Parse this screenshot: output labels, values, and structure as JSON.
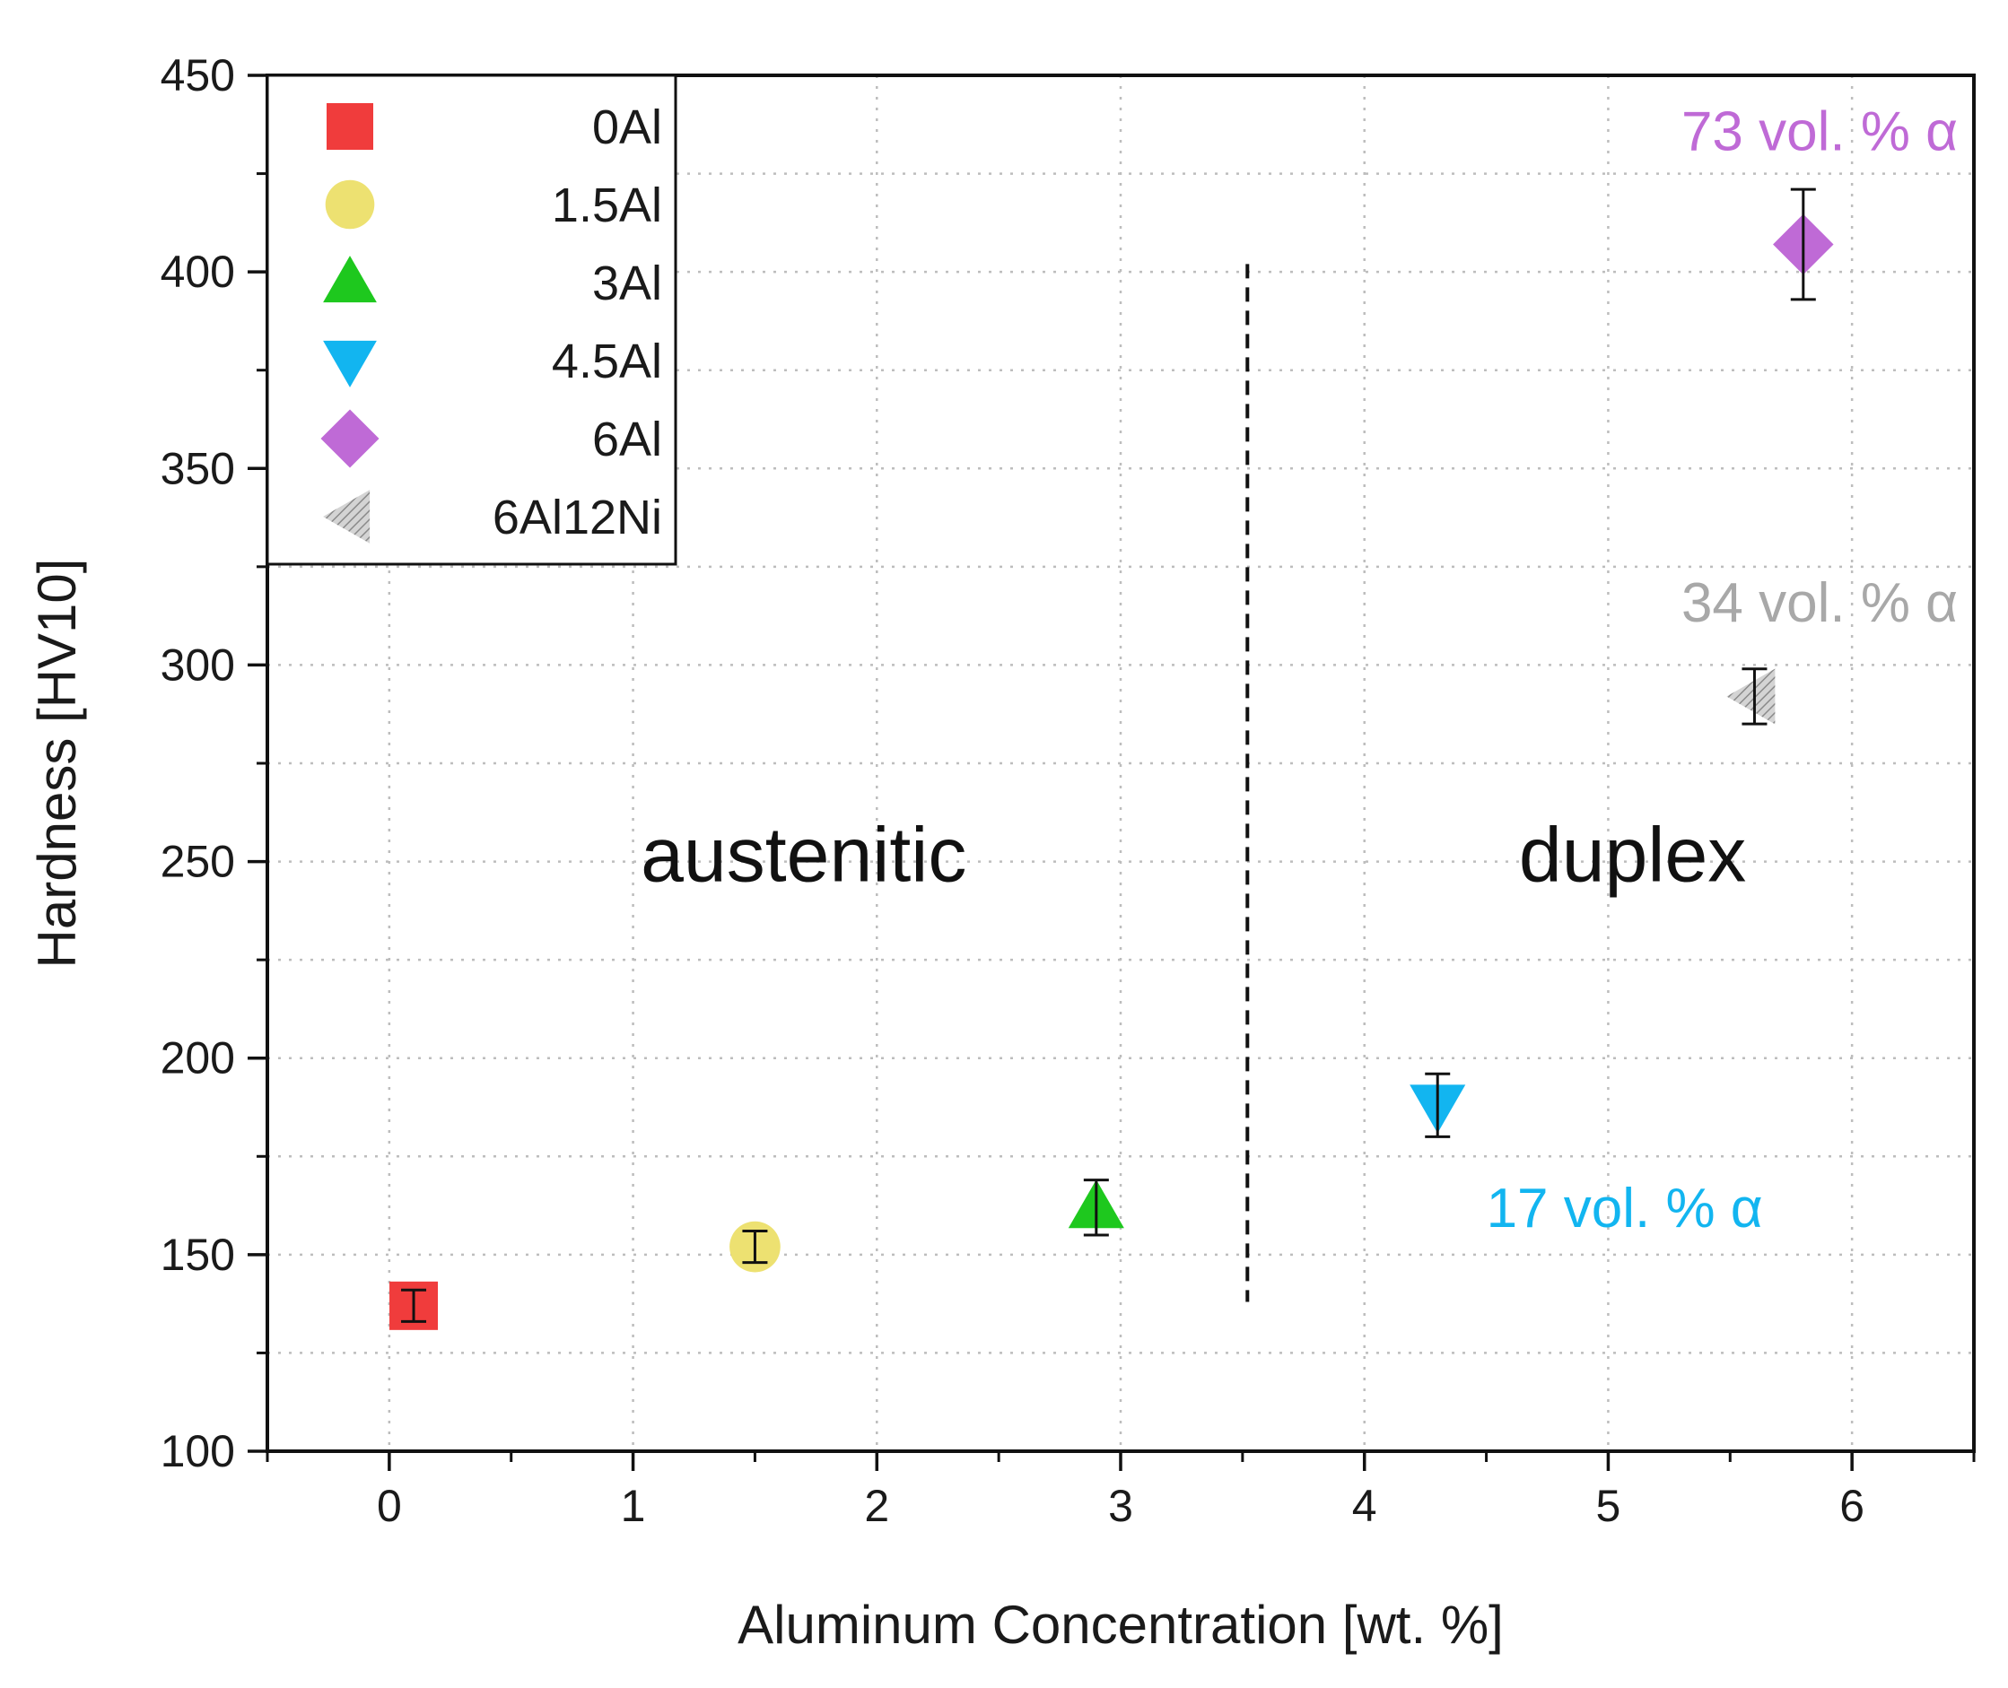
{
  "chart_data": {
    "type": "scatter",
    "title": "",
    "xlabel": "Aluminum Concentration [wt. %]",
    "ylabel": "Hardness [HV10]",
    "xlim": [
      -0.5,
      6.5
    ],
    "ylim": [
      100,
      450
    ],
    "xticks": [
      0,
      1,
      2,
      3,
      4,
      5,
      6
    ],
    "yticks": [
      100,
      150,
      200,
      250,
      300,
      350,
      400,
      450
    ],
    "xtick_labels": [
      "0",
      "1",
      "2",
      "3",
      "4",
      "5",
      "6"
    ],
    "ytick_labels": [
      "100",
      "150",
      "200",
      "250",
      "300",
      "350",
      "400",
      "450"
    ],
    "grid": true,
    "legend_position": "top-left",
    "series": [
      {
        "name": "0Al",
        "x": 0.1,
        "y": 137,
        "err": 4,
        "marker": "square",
        "color": "#f03c3c"
      },
      {
        "name": "1.5Al",
        "x": 1.5,
        "y": 152,
        "err": 4,
        "marker": "circle",
        "color": "#ede171"
      },
      {
        "name": "3Al",
        "x": 2.9,
        "y": 162,
        "err": 7,
        "marker": "triangle-up",
        "color": "#1ec81e"
      },
      {
        "name": "4.5Al",
        "x": 4.3,
        "y": 188,
        "err": 8,
        "marker": "triangle-down",
        "color": "#12b5f0"
      },
      {
        "name": "6Al",
        "x": 5.8,
        "y": 407,
        "err": 14,
        "marker": "diamond",
        "color": "#bf6ad6"
      },
      {
        "name": "6Al12Ni",
        "x": 5.6,
        "y": 292,
        "err": 7,
        "marker": "triangle-left",
        "color": "#a8a8a8"
      }
    ],
    "divider": {
      "x": 3.52,
      "y_from": 138,
      "y_to": 402,
      "style": "dashed"
    },
    "regions": [
      {
        "label": "austenitic",
        "x": 1.7,
        "y": 245
      },
      {
        "label": "duplex",
        "x": 5.1,
        "y": 245
      }
    ],
    "annotations": [
      {
        "text": "73 vol. % α",
        "x": 5.3,
        "y": 431,
        "color": "#bf6ad6"
      },
      {
        "text": "34 vol. % α",
        "x": 5.3,
        "y": 311,
        "color": "#a8a8a8"
      },
      {
        "text": "17 vol. % α",
        "x": 4.5,
        "y": 157,
        "color": "#12b5f0"
      }
    ]
  }
}
